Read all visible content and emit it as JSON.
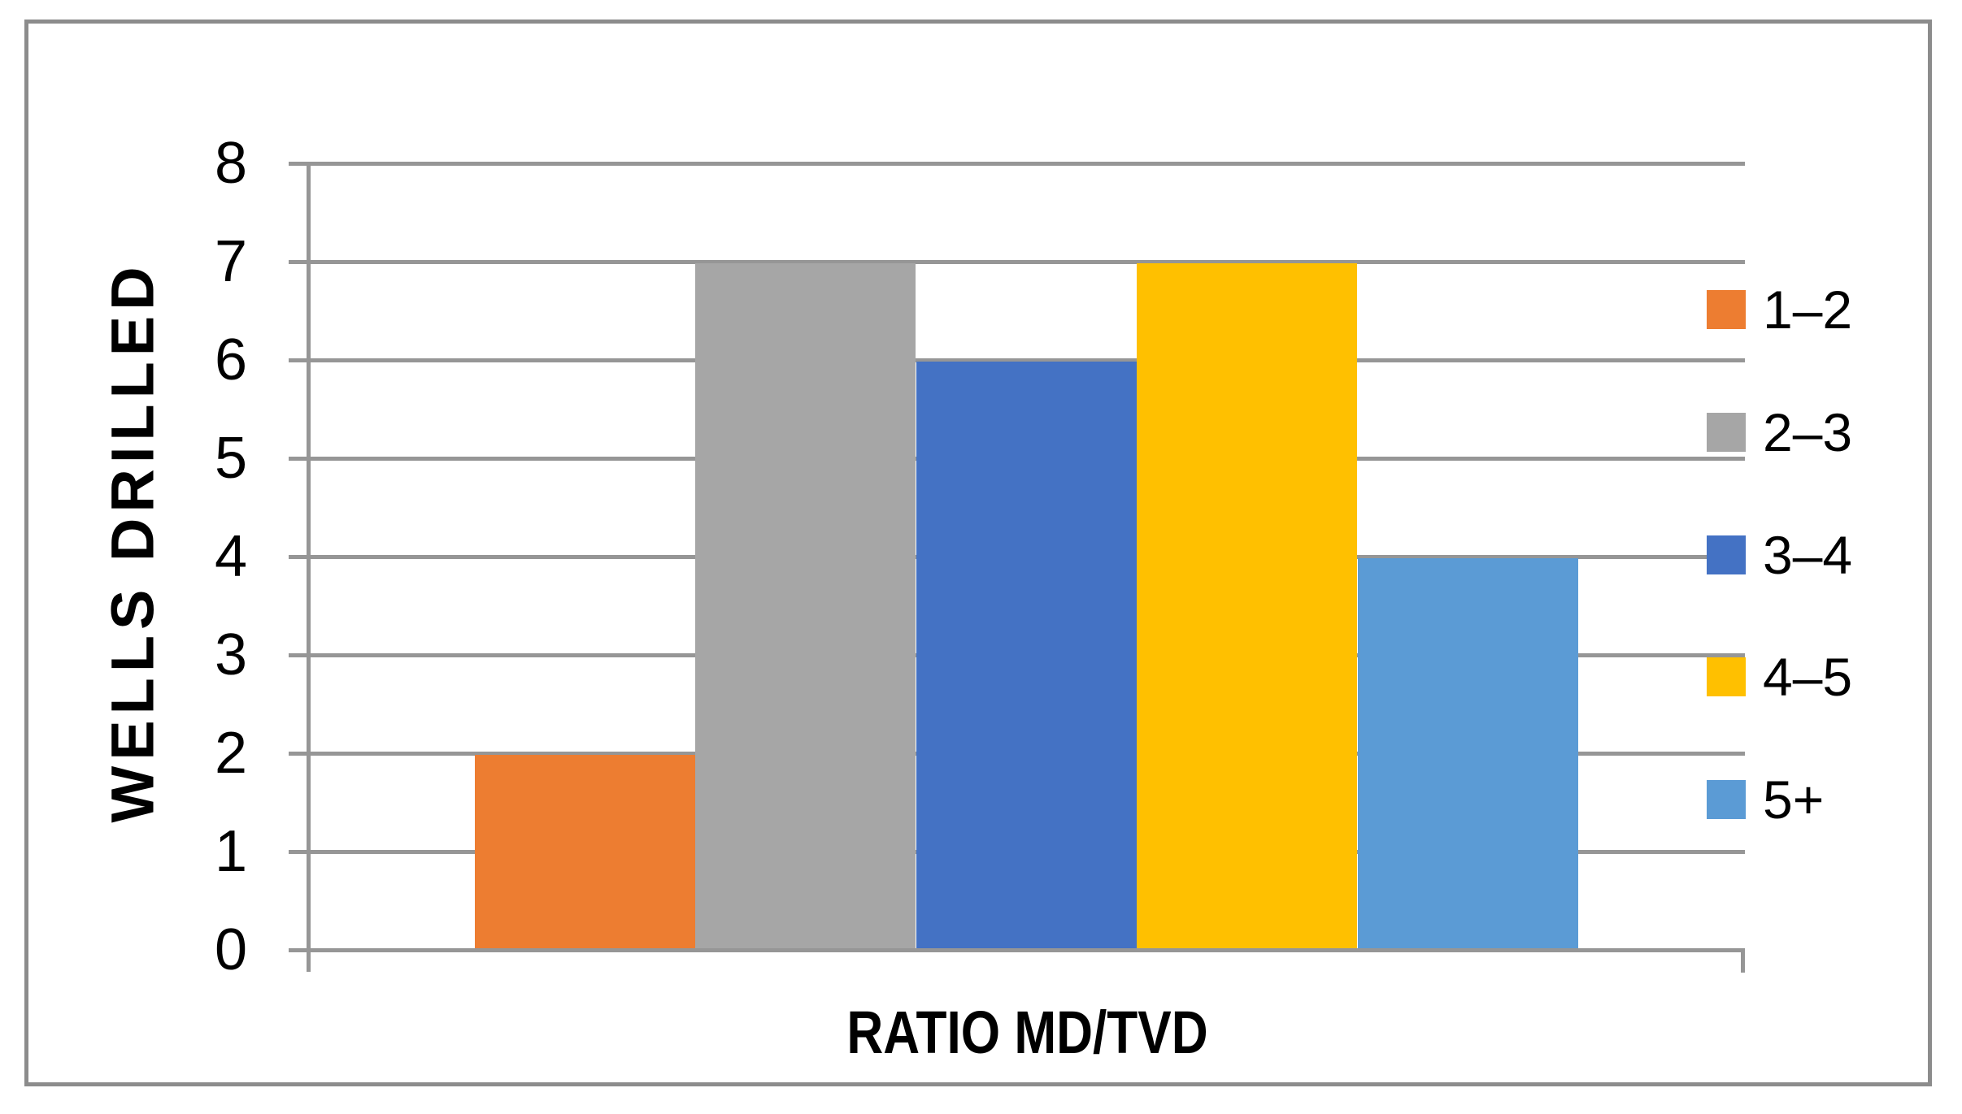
{
  "chart_data": {
    "type": "bar",
    "title": "",
    "xlabel": "RATIO MD/TVD",
    "ylabel": "WELLS  DRILLED",
    "categories": [
      "1–2",
      "2–3",
      "3–4",
      "4–5",
      "5+"
    ],
    "series": [
      {
        "name": "1–2",
        "value": 2,
        "color": "#ED7D31"
      },
      {
        "name": "2–3",
        "value": 7,
        "color": "#A6A6A6"
      },
      {
        "name": "3–4",
        "value": 6,
        "color": "#4472C4"
      },
      {
        "name": "4–5",
        "value": 7,
        "color": "#FFC000"
      },
      {
        "name": "5+",
        "value": 4,
        "color": "#5B9BD5"
      }
    ],
    "ylim": [
      0,
      8
    ],
    "yticks": [
      0,
      1,
      2,
      3,
      4,
      5,
      6,
      7,
      8
    ],
    "grid": "horizontal",
    "legend_position": "right",
    "grid_color": "#969696",
    "axis_color": "#969696",
    "frame_color": "#8C8C8C",
    "text_color": "#000000",
    "plot_background": "#FFFFFF"
  }
}
